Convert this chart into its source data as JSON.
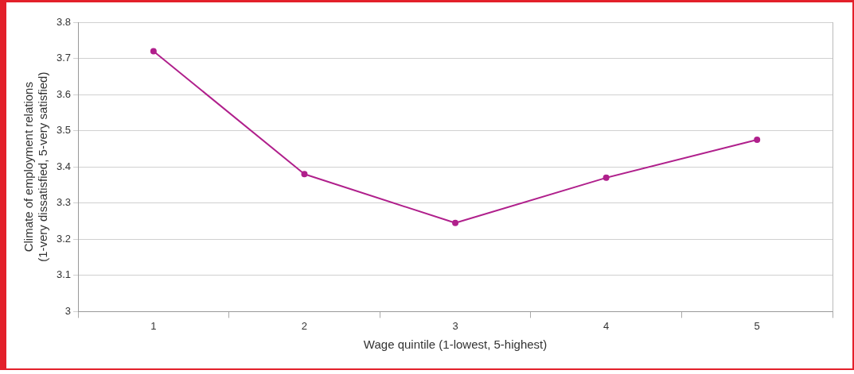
{
  "chart_data": {
    "type": "line",
    "xlabel": "Wage quintile (1-lowest, 5-highest)",
    "ylabel": "Climate of employment relations\n(1-very dissatisfied, 5-very satisfied)",
    "categories": [
      "1",
      "2",
      "3",
      "4",
      "5"
    ],
    "series": [
      {
        "color": "#b0208c",
        "values": [
          3.72,
          3.38,
          3.245,
          3.37,
          3.475
        ]
      }
    ],
    "ylim": [
      3,
      3.8
    ],
    "yticks": [
      3,
      3.1,
      3.2,
      3.3,
      3.4,
      3.5,
      3.6,
      3.7,
      3.8
    ],
    "grid": "y",
    "legend": false,
    "marker": "circle",
    "line_style": "solid"
  }
}
